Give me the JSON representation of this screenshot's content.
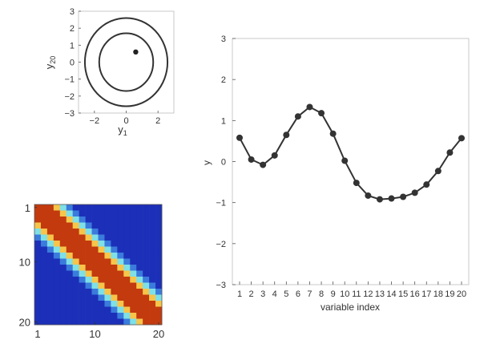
{
  "chart_data": [
    {
      "type": "scatter",
      "panel": "circle-plot",
      "xlabel_main": "y",
      "xlabel_sub": "1",
      "ylabel_main": "y",
      "ylabel_sub": "20",
      "xlim": [
        -3,
        3
      ],
      "ylim": [
        -3,
        3
      ],
      "xticks": [
        -2,
        0,
        2
      ],
      "yticks": [
        -3,
        -2,
        -1,
        0,
        1,
        2,
        3
      ],
      "circle_radii": [
        1.7,
        2.6
      ],
      "point": {
        "x": 0.6,
        "y": 0.6
      },
      "grid": false
    },
    {
      "type": "heatmap",
      "panel": "covariance-heatmap",
      "size": 20,
      "row_ticks": [
        1,
        10,
        20
      ],
      "col_ticks": [
        1,
        10,
        20
      ],
      "colors": {
        "level0": "#1c2fb8",
        "level1": "#3a7bdc",
        "level2": "#7fe0e6",
        "level3": "#f6c54a",
        "level4": "#c23a0e"
      }
    },
    {
      "type": "line",
      "panel": "series-plot",
      "xlabel": "variable index",
      "ylabel": "y",
      "x": [
        1,
        2,
        3,
        4,
        5,
        6,
        7,
        8,
        9,
        10,
        11,
        12,
        13,
        14,
        15,
        16,
        17,
        18,
        19,
        20
      ],
      "values": [
        0.58,
        0.05,
        -0.08,
        0.15,
        0.65,
        1.1,
        1.33,
        1.18,
        0.68,
        0.02,
        -0.52,
        -0.83,
        -0.92,
        -0.9,
        -0.86,
        -0.76,
        -0.56,
        -0.23,
        0.22,
        0.57
      ],
      "ylim": [
        -3,
        3
      ],
      "yticks": [
        -3,
        -2,
        -1,
        0,
        1,
        2,
        3
      ],
      "line_color": "#333333",
      "grid": false
    }
  ]
}
